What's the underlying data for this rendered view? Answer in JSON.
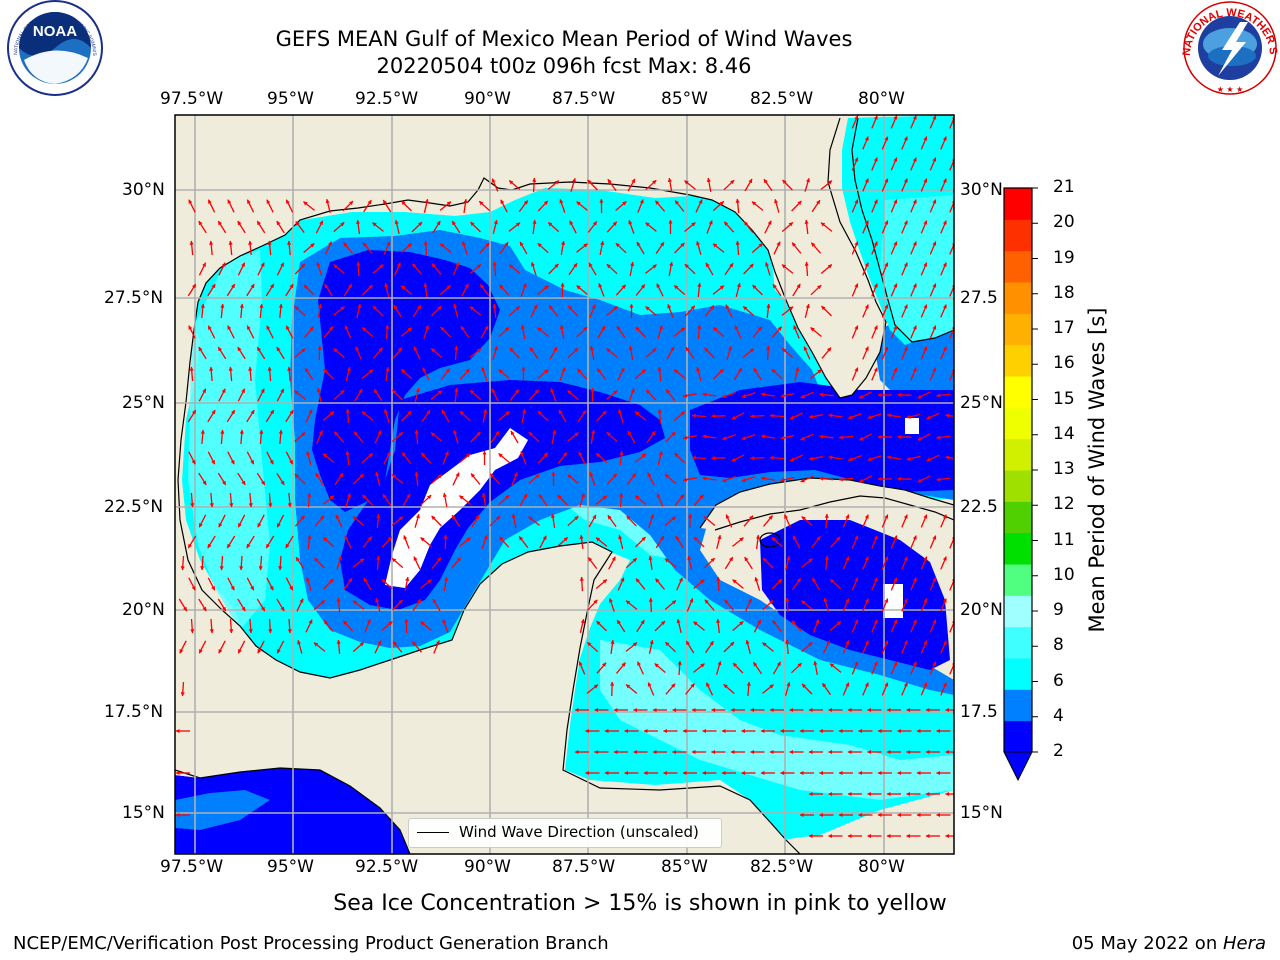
{
  "header": {
    "title_line1": "GEFS MEAN Gulf of Mexico Mean Period of Wind Waves",
    "title_line2": "20220504 t00z 096h fcst   Max: 8.46"
  },
  "logos": {
    "noaa": {
      "text": "NOAA",
      "ring_text": "NATIONAL OCEANIC AND ATMOSPHERIC ADMINISTRATION · U.S. DEPARTMENT OF COMMERCE"
    },
    "nws": {
      "ring_text": "NATIONAL WEATHER SERVICE"
    }
  },
  "map": {
    "lon_labels": [
      "97.5°W",
      "95°W",
      "92.5°W",
      "90°W",
      "87.5°W",
      "85°W",
      "82.5°W",
      "80°W"
    ],
    "lat_labels_left": [
      "30°N",
      "27.5°N",
      "25°N",
      "22.5°N",
      "20°N",
      "17.5°N",
      "15°N"
    ],
    "lat_labels_right": [
      "30°N",
      "27.5",
      "25°N",
      "22.5",
      "20°N",
      "17.5",
      "15°N"
    ],
    "legend_label": "Wind Wave Direction (unscaled)",
    "colors": {
      "land": "#efecdc",
      "grid": "#b0b0b0",
      "arrow": "#ff0000",
      "coast": "#000000"
    }
  },
  "colorbar": {
    "title": "Mean Period of Wind Waves [s]",
    "tick_labels": [
      "21",
      "20",
      "19",
      "18",
      "17",
      "16",
      "15",
      "14",
      "13",
      "12",
      "11",
      "10",
      "9",
      "8",
      "6",
      "4",
      "2"
    ],
    "colors_bottom_to_top": [
      "#0000ff",
      "#0080ff",
      "#00ffff",
      "#40ffff",
      "#a0ffff",
      "#50ff80",
      "#00e000",
      "#50d000",
      "#a0e000",
      "#d0f000",
      "#f0ff00",
      "#ffff00",
      "#ffd000",
      "#ffb000",
      "#ff9000",
      "#ff6000",
      "#ff3000",
      "#ff0000"
    ],
    "below_min_color": "#0000ff"
  },
  "footer": {
    "ice_note": "Sea Ice Concentration > 15% is shown in pink to yellow",
    "left": "NCEP/EMC/Verification Post Processing Product Generation Branch",
    "right_date": "05 May 2022 on ",
    "right_host": "Hera"
  }
}
